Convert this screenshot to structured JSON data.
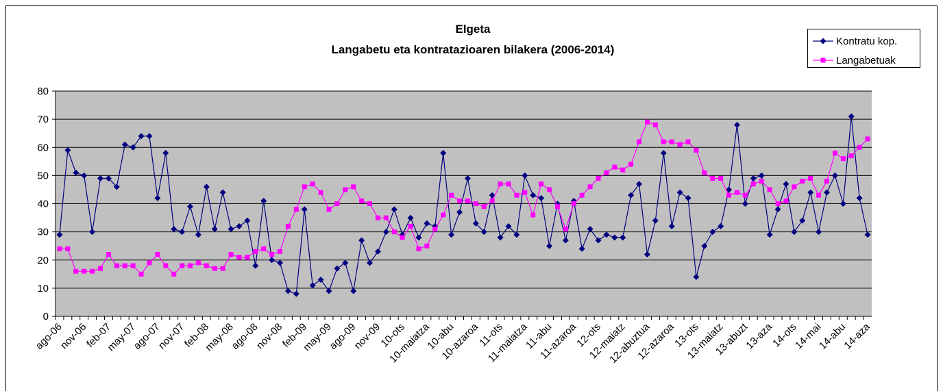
{
  "chart_data": {
    "type": "line",
    "title": "Elgeta",
    "subtitle": "Langabetu eta kontratazioaren bilakera (2006-2014)",
    "categories": [
      "ago-06",
      null,
      null,
      "nov-06",
      null,
      null,
      "feb-07",
      null,
      null,
      "may-07",
      null,
      null,
      "ago-07",
      null,
      null,
      "nov-07",
      null,
      null,
      "feb-08",
      null,
      null,
      "may-08",
      null,
      null,
      "ago-08",
      null,
      null,
      "nov-08",
      null,
      null,
      "feb-09",
      null,
      null,
      "may-09",
      null,
      null,
      "ago-09",
      null,
      null,
      "nov-09",
      null,
      null,
      "10-ots",
      null,
      null,
      "10-maiatza",
      null,
      null,
      "10-abu",
      null,
      null,
      "10-azaroa",
      null,
      null,
      "11-ots",
      null,
      null,
      "11-maiatza",
      null,
      null,
      "11-abu",
      null,
      null,
      "11-azaroa",
      null,
      null,
      "12-ots",
      null,
      null,
      "12-maiatz",
      null,
      null,
      "12-abuztua",
      null,
      null,
      "12-azaroa",
      null,
      null,
      "13-ots",
      null,
      null,
      "13-maiatz",
      null,
      null,
      "13-abuzt",
      null,
      null,
      "13-aza",
      null,
      null,
      "14-ots",
      null,
      null,
      "14-mai",
      null,
      null,
      "14-abu",
      null,
      null,
      "14-aza"
    ],
    "series": [
      {
        "name": "Kontratu kop.",
        "color": "#000080",
        "marker": "diamond",
        "values": [
          29,
          59,
          51,
          50,
          30,
          49,
          49,
          46,
          61,
          60,
          64,
          64,
          42,
          58,
          31,
          30,
          39,
          29,
          46,
          31,
          44,
          31,
          32,
          34,
          18,
          41,
          20,
          19,
          9,
          8,
          38,
          11,
          13,
          9,
          17,
          19,
          9,
          27,
          19,
          23,
          30,
          38,
          29,
          35,
          28,
          33,
          32,
          58,
          29,
          37,
          49,
          33,
          30,
          43,
          28,
          32,
          29,
          50,
          43,
          42,
          25,
          40,
          27,
          41,
          24,
          31,
          27,
          29,
          28,
          28,
          43,
          47,
          22,
          34,
          58,
          32,
          44,
          42,
          14,
          25,
          30,
          32,
          45,
          68,
          40,
          49,
          50,
          29,
          38,
          47,
          30,
          34,
          44,
          30,
          44,
          50,
          40,
          71,
          42,
          29
        ]
      },
      {
        "name": "Langabetuak",
        "color": "#ff00ff",
        "marker": "square",
        "values": [
          24,
          24,
          16,
          16,
          16,
          17,
          22,
          18,
          18,
          18,
          15,
          19,
          22,
          18,
          15,
          18,
          18,
          19,
          18,
          17,
          17,
          22,
          21,
          21,
          23,
          24,
          22,
          23,
          32,
          38,
          46,
          47,
          44,
          38,
          40,
          45,
          46,
          41,
          40,
          35,
          35,
          30,
          28,
          32,
          24,
          25,
          31,
          36,
          43,
          41,
          41,
          40,
          39,
          41,
          47,
          47,
          43,
          44,
          36,
          47,
          45,
          39,
          31,
          40,
          43,
          46,
          49,
          51,
          53,
          52,
          54,
          62,
          69,
          68,
          62,
          62,
          61,
          62,
          59,
          51,
          49,
          49,
          43,
          44,
          43,
          47,
          48,
          45,
          40,
          41,
          46,
          48,
          49,
          43,
          48,
          58,
          56,
          57,
          60,
          63
        ]
      }
    ],
    "ylim": [
      0,
      80
    ],
    "yticks": [
      0,
      10,
      20,
      30,
      40,
      50,
      60,
      70,
      80
    ],
    "grid": true,
    "plot_background": "#c0c0c0",
    "legend": "top-right"
  }
}
